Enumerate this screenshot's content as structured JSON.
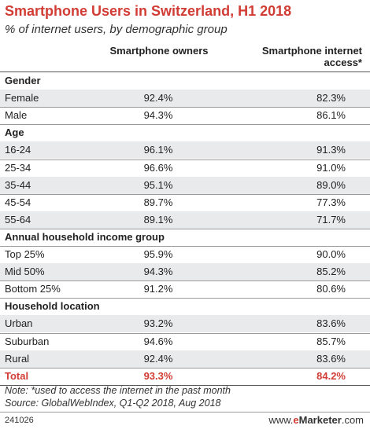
{
  "chart_data": {
    "type": "table",
    "title": "Smartphone Users in Switzerland, H1 2018",
    "subtitle": "% of internet users, by demographic group",
    "columns": [
      "Smartphone owners",
      "Smartphone internet access*"
    ],
    "column_lines": [
      [
        "Smartphone owners"
      ],
      [
        "Smartphone internet",
        "access*"
      ]
    ],
    "sections": [
      {
        "name": "Gender",
        "rows": [
          {
            "label": "Female",
            "owners": "92.4%",
            "access": "82.3%"
          },
          {
            "label": "Male",
            "owners": "94.3%",
            "access": "86.1%"
          }
        ]
      },
      {
        "name": "Age",
        "rows": [
          {
            "label": "16-24",
            "owners": "96.1%",
            "access": "91.3%"
          },
          {
            "label": "25-34",
            "owners": "96.6%",
            "access": "91.0%"
          },
          {
            "label": "35-44",
            "owners": "95.1%",
            "access": "89.0%"
          },
          {
            "label": "45-54",
            "owners": "89.7%",
            "access": "77.3%"
          },
          {
            "label": "55-64",
            "owners": "89.1%",
            "access": "71.7%"
          }
        ]
      },
      {
        "name": "Annual household income group",
        "rows": [
          {
            "label": "Top 25%",
            "owners": "95.9%",
            "access": "90.0%"
          },
          {
            "label": "Mid 50%",
            "owners": "94.3%",
            "access": "85.2%"
          },
          {
            "label": "Bottom 25%",
            "owners": "91.2%",
            "access": "80.6%"
          }
        ]
      },
      {
        "name": "Household location",
        "rows": [
          {
            "label": "Urban",
            "owners": "93.2%",
            "access": "83.6%"
          },
          {
            "label": "Suburban",
            "owners": "94.6%",
            "access": "85.7%"
          },
          {
            "label": "Rural",
            "owners": "92.4%",
            "access": "83.6%"
          }
        ]
      }
    ],
    "total": {
      "label": "Total",
      "owners": "93.3%",
      "access": "84.2%"
    },
    "note": "Note: *used to access the internet in the past month",
    "source": "Source: GlobalWebIndex, Q1-Q2 2018, Aug 2018"
  },
  "footer": {
    "chart_id": "241026",
    "brand_prefix": "www.",
    "brand_e": "e",
    "brand_name": "Marketer",
    "brand_suffix": ".com"
  },
  "colors": {
    "accent": "#d13c34",
    "row_shade": "#e9eaeb"
  }
}
